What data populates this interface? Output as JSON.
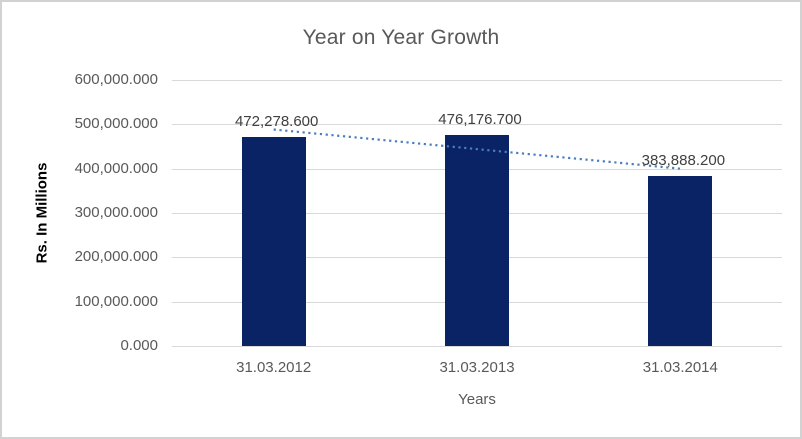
{
  "chart_data": {
    "type": "bar",
    "title": "Year on Year Growth",
    "xlabel": "Years",
    "ylabel": "Rs. In Millions",
    "categories": [
      "31.03.2012",
      "31.03.2013",
      "31.03.2014"
    ],
    "values": [
      472278.6,
      476176.7,
      383888.2
    ],
    "data_labels": [
      "472,278.600",
      "476,176.700",
      "383,888.200"
    ],
    "y_ticks": [
      {
        "value": 0,
        "label": "0.000"
      },
      {
        "value": 100000,
        "label": "100,000.000"
      },
      {
        "value": 200000,
        "label": "200,000.000"
      },
      {
        "value": 300000,
        "label": "300,000.000"
      },
      {
        "value": 400000,
        "label": "400,000.000"
      },
      {
        "value": 500000,
        "label": "500,000.000"
      },
      {
        "value": 600000,
        "label": "600,000.000"
      }
    ],
    "ylim": [
      0,
      600000
    ],
    "grid": true,
    "legend": "none",
    "trendline": {
      "type": "linear",
      "style": "dotted"
    },
    "colors": {
      "bar": "#0a2364",
      "trendline": "#4a7ebf",
      "gridline": "#d9d9d9",
      "axis_text": "#595959",
      "data_label": "#404040",
      "title_text": "#595959",
      "y_axis_title_text": "#000000"
    }
  }
}
